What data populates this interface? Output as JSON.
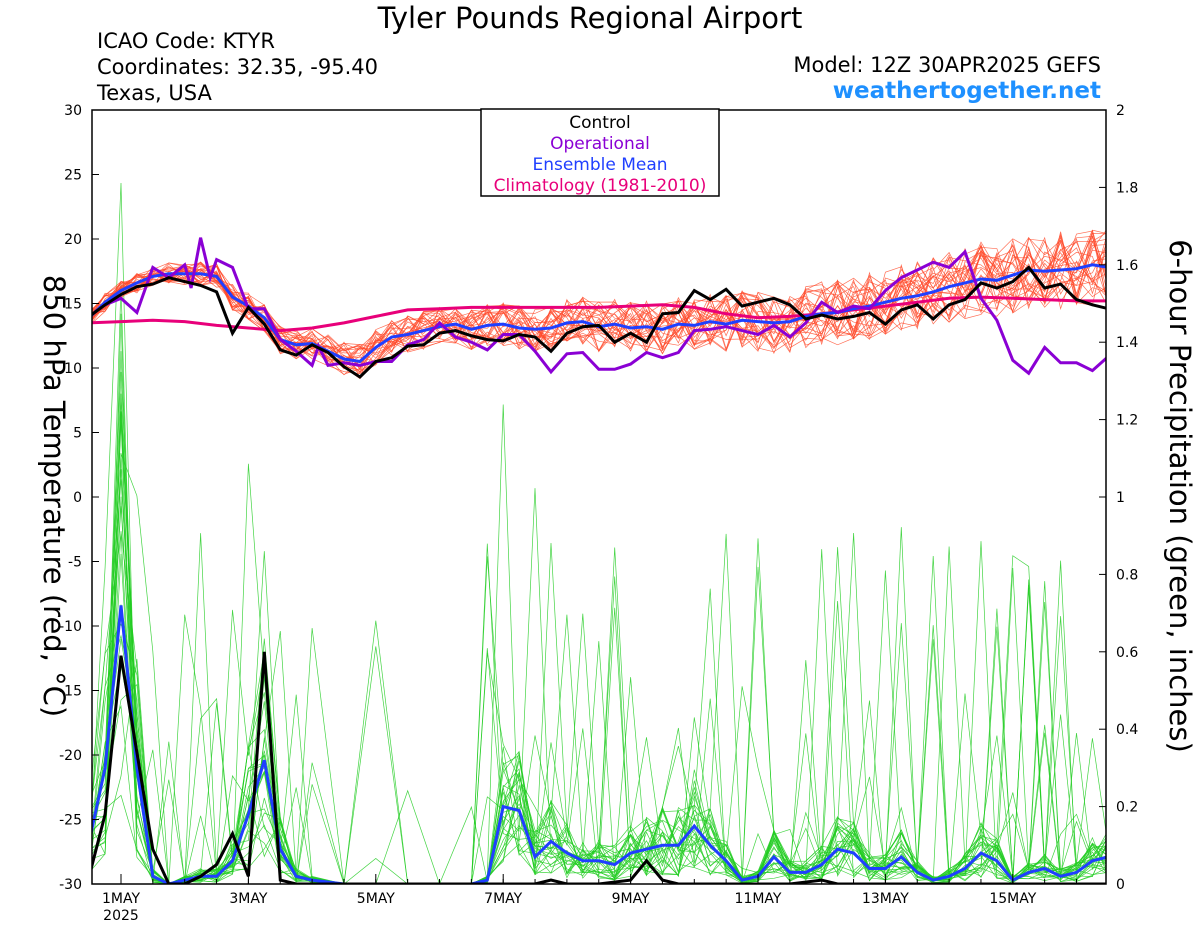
{
  "header": {
    "title": "Tyler Pounds Regional Airport",
    "icao": "ICAO Code: KTYR",
    "coords": "Coordinates: 32.35, -95.40",
    "location": "Texas, USA",
    "model": "Model: 12Z 30APR2025 GEFS",
    "website": "weathertogether.net"
  },
  "colors": {
    "control": "#000000",
    "operational": "#8a00d4",
    "mean": "#1f3fff",
    "climatology": "#e8007a",
    "members_temp": "#ff4a2a",
    "members_precip": "#22cc22",
    "website": "#1e90ff"
  },
  "chart_data": {
    "type": "line",
    "title": "Tyler Pounds Regional Airport",
    "ylabel_left": "850 hPa Temperature (red, °C)",
    "ylabel_right": "6-hour Precipitation (green, inches)",
    "xlim": [
      0,
      16.6
    ],
    "ylim_left": [
      -30,
      30
    ],
    "ylim_right": [
      0,
      2
    ],
    "grid": false,
    "legend_position": "top-center",
    "yticks_left": [
      "30",
      "25",
      "20",
      "15",
      "10",
      "5",
      "0",
      "-5",
      "-10",
      "-15",
      "-20",
      "-25",
      "-30"
    ],
    "yticks_right": [
      "2",
      "1.8",
      "1.6",
      "1.4",
      "1.2",
      "1",
      "0.8",
      "0.6",
      "0.4",
      "0.2",
      "0"
    ],
    "xticks": [
      {
        "day": 1,
        "label": "1MAY",
        "sublabel": "2025"
      },
      {
        "day": 3,
        "label": "3MAY",
        "sublabel": ""
      },
      {
        "day": 5,
        "label": "5MAY",
        "sublabel": ""
      },
      {
        "day": 7,
        "label": "7MAY",
        "sublabel": ""
      },
      {
        "day": 9,
        "label": "9MAY",
        "sublabel": ""
      },
      {
        "day": 11,
        "label": "11MAY",
        "sublabel": ""
      },
      {
        "day": 13,
        "label": "13MAY",
        "sublabel": ""
      },
      {
        "day": 15,
        "label": "15MAY",
        "sublabel": ""
      }
    ],
    "legend": [
      {
        "label": "Control",
        "key": "control"
      },
      {
        "label": "Operational",
        "key": "operational"
      },
      {
        "label": "Ensemble Mean",
        "key": "mean"
      },
      {
        "label": "Climatology (1981-2010)",
        "key": "climatology"
      }
    ],
    "temperature": {
      "control": [
        [
          0.5,
          14.0
        ],
        [
          0.75,
          14.9
        ],
        [
          1.0,
          15.7
        ],
        [
          1.25,
          16.3
        ],
        [
          1.5,
          16.5
        ],
        [
          1.75,
          17.0
        ],
        [
          2.0,
          16.7
        ],
        [
          2.25,
          16.4
        ],
        [
          2.5,
          15.9
        ],
        [
          2.75,
          12.7
        ],
        [
          3.0,
          14.7
        ],
        [
          3.25,
          13.4
        ],
        [
          3.5,
          11.4
        ],
        [
          3.75,
          11.0
        ],
        [
          4.0,
          11.8
        ],
        [
          4.25,
          11.2
        ],
        [
          4.5,
          10.1
        ],
        [
          4.75,
          9.3
        ],
        [
          5.0,
          10.5
        ],
        [
          5.25,
          10.8
        ],
        [
          5.5,
          11.7
        ],
        [
          5.75,
          11.8
        ],
        [
          6.0,
          12.7
        ],
        [
          6.25,
          12.9
        ],
        [
          6.5,
          12.5
        ],
        [
          6.75,
          12.2
        ],
        [
          7.0,
          12.1
        ],
        [
          7.25,
          12.6
        ],
        [
          7.5,
          12.4
        ],
        [
          7.75,
          11.3
        ],
        [
          8.0,
          12.7
        ],
        [
          8.25,
          13.2
        ],
        [
          8.5,
          13.3
        ],
        [
          8.75,
          12.0
        ],
        [
          9.0,
          12.7
        ],
        [
          9.25,
          12.0
        ],
        [
          9.5,
          14.2
        ],
        [
          9.75,
          14.3
        ],
        [
          10.0,
          16.0
        ],
        [
          10.25,
          15.3
        ],
        [
          10.5,
          16.1
        ],
        [
          10.75,
          14.8
        ],
        [
          11.0,
          15.1
        ],
        [
          11.25,
          15.4
        ],
        [
          11.5,
          14.9
        ],
        [
          11.75,
          13.8
        ],
        [
          12.0,
          14.1
        ],
        [
          12.25,
          13.8
        ],
        [
          12.5,
          14.0
        ],
        [
          12.75,
          14.3
        ],
        [
          13.0,
          13.4
        ],
        [
          13.25,
          14.5
        ],
        [
          13.5,
          14.9
        ],
        [
          13.75,
          13.8
        ],
        [
          14.0,
          14.9
        ],
        [
          14.25,
          15.3
        ],
        [
          14.5,
          16.6
        ],
        [
          14.75,
          16.2
        ],
        [
          15.0,
          16.7
        ],
        [
          15.25,
          17.8
        ],
        [
          15.5,
          16.2
        ],
        [
          15.75,
          16.5
        ],
        [
          16.0,
          15.3
        ],
        [
          16.25,
          14.9
        ],
        [
          16.5,
          14.6
        ]
      ],
      "operational": [
        [
          0.5,
          14.0
        ],
        [
          0.75,
          14.9
        ],
        [
          1.0,
          15.4
        ],
        [
          1.25,
          14.3
        ],
        [
          1.5,
          17.8
        ],
        [
          1.75,
          17.0
        ],
        [
          2.0,
          18.0
        ],
        [
          2.1,
          16.2
        ],
        [
          2.25,
          20.1
        ],
        [
          2.4,
          17.0
        ],
        [
          2.5,
          18.4
        ],
        [
          2.75,
          17.8
        ],
        [
          3.0,
          14.6
        ],
        [
          3.25,
          14.6
        ],
        [
          3.5,
          12.2
        ],
        [
          3.75,
          11.3
        ],
        [
          4.0,
          10.2
        ],
        [
          4.1,
          11.7
        ],
        [
          4.25,
          10.2
        ],
        [
          4.5,
          10.4
        ],
        [
          4.75,
          10.2
        ],
        [
          5.0,
          10.5
        ],
        [
          5.25,
          10.5
        ],
        [
          5.5,
          11.8
        ],
        [
          5.75,
          12.2
        ],
        [
          6.0,
          13.5
        ],
        [
          6.25,
          12.4
        ],
        [
          6.5,
          12.0
        ],
        [
          6.75,
          11.4
        ],
        [
          7.0,
          12.6
        ],
        [
          7.25,
          12.6
        ],
        [
          7.5,
          11.3
        ],
        [
          7.75,
          9.7
        ],
        [
          8.0,
          11.1
        ],
        [
          8.25,
          11.2
        ],
        [
          8.5,
          9.9
        ],
        [
          8.75,
          9.9
        ],
        [
          9.0,
          10.3
        ],
        [
          9.25,
          11.2
        ],
        [
          9.5,
          10.8
        ],
        [
          9.75,
          11.2
        ],
        [
          10.0,
          12.9
        ],
        [
          10.25,
          13.0
        ],
        [
          10.5,
          13.2
        ],
        [
          10.75,
          12.9
        ],
        [
          11.0,
          12.6
        ],
        [
          11.25,
          13.3
        ],
        [
          11.5,
          12.4
        ],
        [
          11.75,
          13.5
        ],
        [
          12.0,
          15.1
        ],
        [
          12.25,
          14.3
        ],
        [
          12.5,
          14.8
        ],
        [
          12.75,
          14.6
        ],
        [
          13.0,
          16.0
        ],
        [
          13.25,
          17.0
        ],
        [
          13.5,
          17.6
        ],
        [
          13.75,
          18.2
        ],
        [
          14.0,
          17.8
        ],
        [
          14.25,
          19.0
        ],
        [
          14.5,
          15.4
        ],
        [
          14.75,
          13.7
        ],
        [
          15.0,
          10.6
        ],
        [
          15.25,
          9.6
        ],
        [
          15.5,
          11.6
        ],
        [
          15.75,
          10.4
        ],
        [
          16.0,
          10.4
        ],
        [
          16.25,
          9.8
        ],
        [
          16.5,
          10.9
        ]
      ],
      "mean": [
        [
          0.5,
          13.9
        ],
        [
          0.75,
          15.1
        ],
        [
          1.0,
          16.0
        ],
        [
          1.25,
          16.6
        ],
        [
          1.5,
          17.1
        ],
        [
          1.75,
          17.3
        ],
        [
          2.0,
          17.3
        ],
        [
          2.25,
          17.3
        ],
        [
          2.5,
          17.1
        ],
        [
          2.75,
          15.5
        ],
        [
          3.0,
          14.8
        ],
        [
          3.25,
          13.9
        ],
        [
          3.5,
          12.2
        ],
        [
          3.75,
          11.8
        ],
        [
          4.0,
          11.9
        ],
        [
          4.25,
          11.3
        ],
        [
          4.5,
          10.7
        ],
        [
          4.75,
          10.5
        ],
        [
          5.0,
          11.6
        ],
        [
          5.25,
          12.4
        ],
        [
          5.5,
          12.6
        ],
        [
          5.75,
          12.9
        ],
        [
          6.0,
          13.2
        ],
        [
          6.25,
          13.4
        ],
        [
          6.5,
          13.0
        ],
        [
          6.75,
          13.3
        ],
        [
          7.0,
          13.4
        ],
        [
          7.25,
          13.1
        ],
        [
          7.5,
          13.0
        ],
        [
          7.75,
          13.1
        ],
        [
          8.0,
          13.5
        ],
        [
          8.25,
          13.6
        ],
        [
          8.5,
          13.2
        ],
        [
          8.75,
          13.4
        ],
        [
          9.0,
          13.1
        ],
        [
          9.25,
          13.2
        ],
        [
          9.5,
          13.0
        ],
        [
          9.75,
          13.4
        ],
        [
          10.0,
          13.3
        ],
        [
          10.25,
          13.6
        ],
        [
          10.5,
          13.4
        ],
        [
          10.75,
          13.7
        ],
        [
          11.0,
          13.6
        ],
        [
          11.25,
          13.5
        ],
        [
          11.5,
          13.6
        ],
        [
          11.75,
          14.0
        ],
        [
          12.0,
          14.2
        ],
        [
          12.25,
          14.3
        ],
        [
          12.5,
          14.6
        ],
        [
          12.75,
          14.8
        ],
        [
          13.0,
          15.1
        ],
        [
          13.25,
          15.4
        ],
        [
          13.5,
          15.6
        ],
        [
          13.75,
          15.9
        ],
        [
          14.0,
          16.3
        ],
        [
          14.25,
          16.6
        ],
        [
          14.5,
          16.9
        ],
        [
          14.75,
          16.8
        ],
        [
          15.0,
          17.2
        ],
        [
          15.25,
          17.6
        ],
        [
          15.5,
          17.5
        ],
        [
          15.75,
          17.6
        ],
        [
          16.0,
          17.7
        ],
        [
          16.25,
          18.0
        ],
        [
          16.5,
          17.8
        ]
      ],
      "climatology": [
        [
          0.5,
          13.5
        ],
        [
          1.0,
          13.6
        ],
        [
          1.5,
          13.7
        ],
        [
          2.0,
          13.6
        ],
        [
          2.5,
          13.3
        ],
        [
          3.0,
          13.1
        ],
        [
          3.5,
          12.9
        ],
        [
          4.0,
          13.1
        ],
        [
          4.5,
          13.5
        ],
        [
          5.0,
          14.0
        ],
        [
          5.5,
          14.5
        ],
        [
          6.0,
          14.6
        ],
        [
          6.5,
          14.7
        ],
        [
          7.0,
          14.7
        ],
        [
          7.5,
          14.7
        ],
        [
          8.0,
          14.7
        ],
        [
          8.5,
          14.7
        ],
        [
          9.0,
          14.8
        ],
        [
          9.5,
          14.9
        ],
        [
          10.0,
          14.7
        ],
        [
          10.5,
          14.2
        ],
        [
          11.0,
          13.9
        ],
        [
          11.5,
          14.0
        ],
        [
          12.0,
          14.2
        ],
        [
          12.5,
          14.5
        ],
        [
          13.0,
          14.8
        ],
        [
          13.5,
          15.1
        ],
        [
          14.0,
          15.4
        ],
        [
          14.5,
          15.5
        ],
        [
          15.0,
          15.4
        ],
        [
          15.5,
          15.3
        ],
        [
          16.0,
          15.2
        ],
        [
          16.6,
          15.2
        ]
      ]
    },
    "precipitation": {
      "control": [
        [
          0.5,
          0.02
        ],
        [
          0.75,
          0.18
        ],
        [
          1.0,
          0.59
        ],
        [
          1.25,
          0.34
        ],
        [
          1.5,
          0.09
        ],
        [
          1.75,
          0.0
        ],
        [
          2.0,
          0.0
        ],
        [
          2.25,
          0.02
        ],
        [
          2.5,
          0.05
        ],
        [
          2.75,
          0.13
        ],
        [
          3.0,
          0.02
        ],
        [
          3.25,
          0.6
        ],
        [
          3.5,
          0.01
        ],
        [
          3.75,
          0.0
        ],
        [
          4.0,
          0.0
        ],
        [
          4.5,
          0.0
        ],
        [
          5.0,
          0.0
        ],
        [
          5.5,
          0.0
        ],
        [
          6.0,
          0.0
        ],
        [
          6.5,
          0.0
        ],
        [
          7.0,
          0.0
        ],
        [
          7.25,
          0.0
        ],
        [
          7.5,
          0.0
        ],
        [
          7.75,
          0.01
        ],
        [
          8.0,
          0.0
        ],
        [
          8.5,
          0.0
        ],
        [
          9.0,
          0.01
        ],
        [
          9.25,
          0.06
        ],
        [
          9.5,
          0.01
        ],
        [
          9.75,
          0.0
        ],
        [
          10.0,
          0.0
        ],
        [
          10.5,
          0.0
        ],
        [
          11.0,
          0.0
        ],
        [
          11.5,
          0.0
        ],
        [
          12.0,
          0.01
        ],
        [
          12.25,
          0.0
        ],
        [
          12.5,
          0.0
        ],
        [
          13.0,
          0.0
        ],
        [
          13.5,
          0.0
        ],
        [
          14.0,
          0.0
        ],
        [
          14.5,
          0.0
        ],
        [
          15.0,
          0.0
        ],
        [
          15.5,
          0.0
        ],
        [
          16.0,
          0.0
        ],
        [
          16.5,
          0.0
        ]
      ],
      "mean": [
        [
          0.5,
          0.11
        ],
        [
          0.75,
          0.3
        ],
        [
          1.0,
          0.72
        ],
        [
          1.25,
          0.3
        ],
        [
          1.5,
          0.02
        ],
        [
          1.75,
          0.0
        ],
        [
          2.0,
          0.01
        ],
        [
          2.25,
          0.02
        ],
        [
          2.5,
          0.02
        ],
        [
          2.75,
          0.06
        ],
        [
          3.0,
          0.18
        ],
        [
          3.25,
          0.32
        ],
        [
          3.5,
          0.09
        ],
        [
          3.75,
          0.02
        ],
        [
          4.0,
          0.01
        ],
        [
          4.5,
          0.0
        ],
        [
          5.0,
          0.0
        ],
        [
          5.5,
          0.0
        ],
        [
          6.0,
          0.0
        ],
        [
          6.5,
          0.0
        ],
        [
          6.75,
          0.01
        ],
        [
          7.0,
          0.2
        ],
        [
          7.25,
          0.19
        ],
        [
          7.5,
          0.07
        ],
        [
          7.75,
          0.11
        ],
        [
          8.0,
          0.08
        ],
        [
          8.25,
          0.06
        ],
        [
          8.5,
          0.06
        ],
        [
          8.75,
          0.05
        ],
        [
          9.0,
          0.08
        ],
        [
          9.25,
          0.09
        ],
        [
          9.5,
          0.1
        ],
        [
          9.75,
          0.1
        ],
        [
          10.0,
          0.15
        ],
        [
          10.25,
          0.1
        ],
        [
          10.5,
          0.06
        ],
        [
          10.75,
          0.01
        ],
        [
          11.0,
          0.02
        ],
        [
          11.25,
          0.07
        ],
        [
          11.5,
          0.03
        ],
        [
          11.75,
          0.03
        ],
        [
          12.0,
          0.05
        ],
        [
          12.25,
          0.09
        ],
        [
          12.5,
          0.08
        ],
        [
          12.75,
          0.04
        ],
        [
          13.0,
          0.04
        ],
        [
          13.25,
          0.07
        ],
        [
          13.5,
          0.03
        ],
        [
          13.75,
          0.01
        ],
        [
          14.0,
          0.02
        ],
        [
          14.25,
          0.04
        ],
        [
          14.5,
          0.08
        ],
        [
          14.75,
          0.06
        ],
        [
          15.0,
          0.01
        ],
        [
          15.25,
          0.03
        ],
        [
          15.5,
          0.04
        ],
        [
          15.75,
          0.02
        ],
        [
          16.0,
          0.03
        ],
        [
          16.25,
          0.06
        ],
        [
          16.5,
          0.07
        ],
        [
          16.6,
          0.04
        ]
      ]
    }
  }
}
